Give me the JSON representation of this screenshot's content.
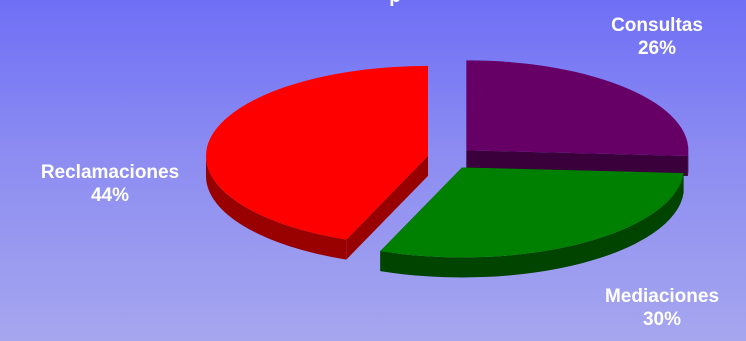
{
  "chart_data": {
    "type": "pie",
    "title": "",
    "slices": [
      {
        "name": "Consultas",
        "value": 26,
        "color": "#660066",
        "side_color": "#3a003c"
      },
      {
        "name": "Mediaciones",
        "value": 30,
        "color": "#008000",
        "side_color": "#004400"
      },
      {
        "name": "Reclamaciones",
        "value": 44,
        "color": "#ff0000",
        "side_color": "#990000"
      }
    ],
    "labels": [
      {
        "name": "Consultas",
        "percent": "26%"
      },
      {
        "name": "Mediaciones",
        "percent": "30%"
      },
      {
        "name": "Reclamaciones",
        "percent": "44%"
      }
    ],
    "legend": "none",
    "style": "3d-exploded"
  },
  "title_fragment": "p"
}
